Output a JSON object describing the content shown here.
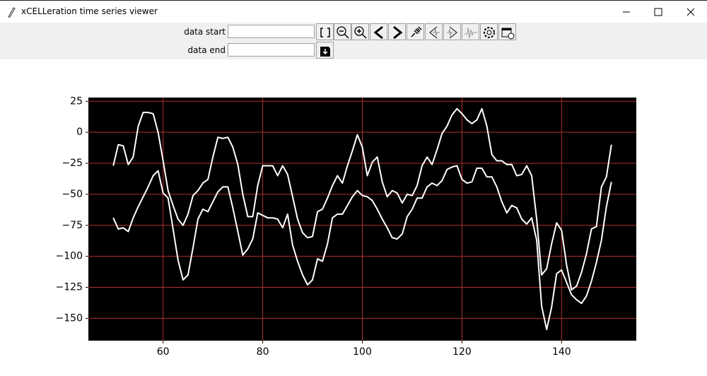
{
  "window": {
    "title": "xCELLeration time series viewer"
  },
  "toolbar": {
    "data_start_label": "data start",
    "data_end_label": "data end"
  },
  "chart_data": {
    "type": "line",
    "x": [
      50,
      51,
      52,
      53,
      54,
      55,
      56,
      57,
      58,
      59,
      60,
      61,
      62,
      63,
      64,
      65,
      66,
      67,
      68,
      69,
      70,
      71,
      72,
      73,
      74,
      75,
      76,
      77,
      78,
      79,
      80,
      81,
      82,
      83,
      84,
      85,
      86,
      87,
      88,
      89,
      90,
      91,
      92,
      93,
      94,
      95,
      96,
      97,
      98,
      99,
      100,
      101,
      102,
      103,
      104,
      105,
      106,
      107,
      108,
      109,
      110,
      111,
      112,
      113,
      114,
      115,
      116,
      117,
      118,
      119,
      120,
      121,
      122,
      123,
      124,
      125,
      126,
      127,
      128,
      129,
      130,
      131,
      132,
      133,
      134,
      135,
      136,
      137,
      138,
      139,
      140,
      141,
      142,
      143,
      144,
      145,
      146,
      147,
      148,
      149,
      150
    ],
    "series": [
      {
        "color": "#ffffff",
        "values": [
          -27,
          -10,
          -11,
          -26,
          -20,
          5,
          16,
          16,
          15,
          0,
          -23,
          -47,
          -59,
          -70,
          -75,
          -66,
          -51,
          -47,
          -41,
          -38,
          -20,
          -4,
          -5,
          -4,
          -12,
          -26,
          -50,
          -68,
          -68,
          -43,
          -27,
          -27,
          -27,
          -35,
          -27,
          -34,
          -52,
          -70,
          -81,
          -85,
          -84,
          -64,
          -62,
          -53,
          -43,
          -35,
          -41,
          -27,
          -15,
          -2,
          -12,
          -35,
          -24,
          -20,
          -40,
          -52,
          -47,
          -49,
          -57,
          -50,
          -51,
          -43,
          -27,
          -20,
          -26,
          -14,
          -1,
          5,
          14,
          19,
          15,
          10,
          7,
          10,
          19,
          5,
          -18,
          -23,
          -23,
          -26,
          -26,
          -35,
          -34,
          -27,
          -35,
          -70,
          -115,
          -110,
          -90,
          -73,
          -79,
          -107,
          -127,
          -124,
          -113,
          -98,
          -78,
          -76,
          -44,
          -36,
          -10
        ]
      },
      {
        "color": "#ffffff",
        "values": [
          -69,
          -78,
          -77,
          -80,
          -69,
          -60,
          -52,
          -44,
          -35,
          -31,
          -49,
          -53,
          -78,
          -103,
          -119,
          -115,
          -93,
          -70,
          -62,
          -64,
          -56,
          -48,
          -44,
          -44,
          -61,
          -80,
          -99,
          -94,
          -86,
          -65,
          -67,
          -69,
          -69,
          -70,
          -77,
          -66,
          -91,
          -104,
          -115,
          -123,
          -119,
          -102,
          -104,
          -90,
          -69,
          -66,
          -66,
          -59,
          -52,
          -47,
          -51,
          -52,
          -55,
          -62,
          -70,
          -77,
          -85,
          -86,
          -82,
          -68,
          -62,
          -53,
          -53,
          -44,
          -41,
          -43,
          -39,
          -30,
          -28,
          -27,
          -38,
          -41,
          -40,
          -29,
          -29,
          -36,
          -36,
          -44,
          -56,
          -65,
          -59,
          -61,
          -70,
          -74,
          -69,
          -87,
          -140,
          -159,
          -141,
          -114,
          -111,
          -121,
          -131,
          -135,
          -138,
          -132,
          -120,
          -105,
          -87,
          -60,
          -40
        ]
      }
    ],
    "xlim": [
      45,
      155
    ],
    "ylim": [
      -168,
      28
    ],
    "xticks": [
      60,
      80,
      100,
      120,
      140
    ],
    "yticks": [
      25,
      0,
      {
        "value": -25,
        "label": "−25"
      },
      {
        "value": -50,
        "label": "−50"
      },
      {
        "value": -75,
        "label": "−75"
      },
      {
        "value": -100,
        "label": "−100"
      },
      {
        "value": -125,
        "label": "−125"
      },
      {
        "value": -150,
        "label": "−150"
      }
    ],
    "grid": true,
    "grid_color": "#b03030",
    "background": "#000000"
  }
}
